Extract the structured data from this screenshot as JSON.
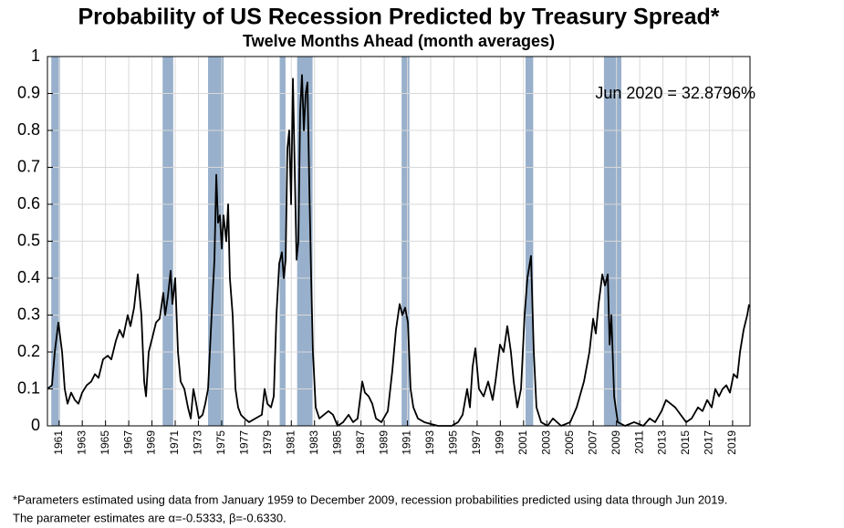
{
  "chart_data": {
    "type": "line",
    "title": "Probability of US Recession Predicted by Treasury Spread*",
    "subtitle": "Twelve Months Ahead (month averages)",
    "annotation": "Jun 2020 = 32.8796%",
    "footnote": [
      "*Parameters estimated using data from January 1959 to December 2009, recession probabilities predicted using data through Jun 2019.",
      "The parameter estimates are α=-0.5333, β=-0.6330."
    ],
    "color": "#000000",
    "recession_color": "#98b0cb",
    "recessions": [
      [
        1960.33,
        1961.08
      ],
      [
        1969.92,
        1970.83
      ],
      [
        1973.83,
        1975.17
      ],
      [
        1980.0,
        1980.5
      ],
      [
        1981.5,
        1982.83
      ],
      [
        1990.5,
        1991.17
      ],
      [
        2001.17,
        2001.83
      ],
      [
        2007.92,
        2009.42
      ]
    ],
    "x": [
      1960.0,
      1960.39,
      1960.63,
      1960.94,
      1961.26,
      1961.49,
      1961.73,
      1962.04,
      1962.36,
      1962.67,
      1962.99,
      1963.38,
      1963.77,
      1964.09,
      1964.4,
      1964.79,
      1965.19,
      1965.5,
      1965.89,
      1966.21,
      1966.52,
      1966.91,
      1967.15,
      1967.46,
      1967.78,
      1968.09,
      1968.33,
      1968.49,
      1968.72,
      1969.04,
      1969.35,
      1969.66,
      1969.98,
      1970.14,
      1970.37,
      1970.61,
      1970.76,
      1971.0,
      1971.24,
      1971.47,
      1971.79,
      1972.1,
      1972.34,
      1972.57,
      1972.81,
      1973.04,
      1973.36,
      1973.59,
      1973.83,
      1974.14,
      1974.38,
      1974.54,
      1974.69,
      1974.85,
      1975.01,
      1975.16,
      1975.4,
      1975.56,
      1975.71,
      1975.95,
      1976.19,
      1976.42,
      1976.66,
      1976.97,
      1977.36,
      1977.91,
      1978.46,
      1978.7,
      1978.94,
      1979.25,
      1979.49,
      1979.72,
      1979.96,
      1980.19,
      1980.35,
      1980.51,
      1980.66,
      1980.82,
      1980.98,
      1981.14,
      1981.29,
      1981.45,
      1981.61,
      1981.76,
      1981.92,
      1982.08,
      1982.24,
      1982.39,
      1982.55,
      1982.71,
      1982.86,
      1983.1,
      1983.41,
      1983.81,
      1984.2,
      1984.59,
      1984.99,
      1985.46,
      1985.93,
      1986.32,
      1986.71,
      1987.11,
      1987.34,
      1987.66,
      1987.97,
      1988.29,
      1988.76,
      1989.31,
      1989.7,
      1990.01,
      1990.33,
      1990.56,
      1990.8,
      1991.04,
      1991.27,
      1991.51,
      1991.9,
      1992.45,
      1993.63,
      1994.81,
      1995.36,
      1995.75,
      1996.14,
      1996.38,
      1996.61,
      1996.85,
      1997.16,
      1997.56,
      1997.95,
      1998.34,
      1998.58,
      1998.97,
      1999.28,
      1999.6,
      1999.91,
      2000.15,
      2000.46,
      2000.78,
      2001.09,
      2001.33,
      2001.64,
      2001.88,
      2002.11,
      2002.51,
      2003.06,
      2003.53,
      2004.24,
      2005.02,
      2005.57,
      2006.2,
      2006.67,
      2006.99,
      2007.22,
      2007.46,
      2007.78,
      2008.01,
      2008.25,
      2008.41,
      2008.56,
      2008.8,
      2009.11,
      2009.74,
      2010.52,
      2011.31,
      2011.86,
      2012.33,
      2012.88,
      2013.27,
      2013.66,
      2014.06,
      2014.53,
      2015.0,
      2015.47,
      2016.02,
      2016.41,
      2016.81,
      2017.2,
      2017.51,
      2017.83,
      2018.14,
      2018.46,
      2018.77,
      2019.09,
      2019.4,
      2019.64,
      2019.95,
      2020.26,
      2020.42
    ],
    "values": [
      0.1,
      0.11,
      0.2,
      0.28,
      0.2,
      0.1,
      0.06,
      0.09,
      0.07,
      0.06,
      0.09,
      0.11,
      0.12,
      0.14,
      0.13,
      0.18,
      0.19,
      0.18,
      0.23,
      0.26,
      0.24,
      0.3,
      0.27,
      0.32,
      0.41,
      0.3,
      0.12,
      0.08,
      0.2,
      0.24,
      0.28,
      0.29,
      0.36,
      0.3,
      0.35,
      0.42,
      0.33,
      0.4,
      0.2,
      0.12,
      0.1,
      0.05,
      0.02,
      0.1,
      0.06,
      0.02,
      0.03,
      0.06,
      0.1,
      0.3,
      0.45,
      0.68,
      0.55,
      0.57,
      0.48,
      0.57,
      0.5,
      0.6,
      0.4,
      0.3,
      0.1,
      0.05,
      0.03,
      0.02,
      0.01,
      0.02,
      0.03,
      0.1,
      0.06,
      0.05,
      0.08,
      0.3,
      0.44,
      0.47,
      0.4,
      0.45,
      0.75,
      0.8,
      0.6,
      0.94,
      0.7,
      0.45,
      0.5,
      0.85,
      0.95,
      0.8,
      0.9,
      0.93,
      0.65,
      0.4,
      0.2,
      0.05,
      0.02,
      0.03,
      0.04,
      0.03,
      0.0,
      0.01,
      0.03,
      0.01,
      0.02,
      0.12,
      0.09,
      0.08,
      0.06,
      0.02,
      0.01,
      0.04,
      0.15,
      0.26,
      0.33,
      0.3,
      0.32,
      0.28,
      0.1,
      0.05,
      0.02,
      0.01,
      0.0,
      0.0,
      0.01,
      0.03,
      0.1,
      0.05,
      0.16,
      0.21,
      0.1,
      0.08,
      0.12,
      0.07,
      0.12,
      0.22,
      0.2,
      0.27,
      0.2,
      0.12,
      0.05,
      0.1,
      0.3,
      0.4,
      0.46,
      0.2,
      0.05,
      0.01,
      0.0,
      0.02,
      0.0,
      0.01,
      0.05,
      0.12,
      0.2,
      0.29,
      0.25,
      0.33,
      0.41,
      0.38,
      0.41,
      0.22,
      0.3,
      0.08,
      0.01,
      0.0,
      0.01,
      0.0,
      0.02,
      0.01,
      0.04,
      0.07,
      0.06,
      0.05,
      0.03,
      0.01,
      0.02,
      0.05,
      0.04,
      0.07,
      0.05,
      0.1,
      0.08,
      0.1,
      0.11,
      0.09,
      0.14,
      0.13,
      0.2,
      0.26,
      0.3,
      0.328796
    ],
    "xlim": [
      1960,
      2020.5
    ],
    "ylim": [
      0,
      1
    ],
    "xticks": [
      1961,
      1963,
      1965,
      1967,
      1969,
      1971,
      1973,
      1975,
      1977,
      1979,
      1981,
      1983,
      1985,
      1987,
      1989,
      1991,
      1993,
      1995,
      1997,
      1999,
      2001,
      2003,
      2005,
      2007,
      2009,
      2011,
      2013,
      2015,
      2017,
      2019
    ],
    "yticks": [
      0,
      0.1,
      0.2,
      0.3,
      0.4,
      0.5,
      0.6,
      0.7,
      0.8,
      0.9,
      1
    ],
    "grid": true
  }
}
